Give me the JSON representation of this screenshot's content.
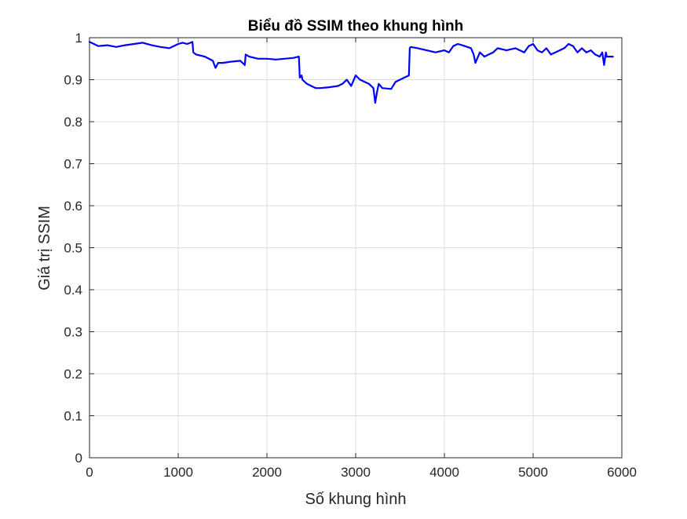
{
  "chart_data": {
    "type": "line",
    "title": "Biểu đồ SSIM theo khung hình",
    "xlabel": "Số khung hình",
    "ylabel": "Giá trị SSIM",
    "xlim": [
      0,
      6000
    ],
    "ylim": [
      0,
      1
    ],
    "x_ticks": [
      0,
      1000,
      2000,
      3000,
      4000,
      5000,
      6000
    ],
    "x_tick_labels": [
      "0",
      "1000",
      "2000",
      "3000",
      "4000",
      "5000",
      "6000"
    ],
    "y_ticks": [
      0,
      0.1,
      0.2,
      0.3,
      0.4,
      0.5,
      0.6,
      0.7,
      0.8,
      0.9,
      1
    ],
    "y_tick_labels": [
      "0",
      "0.1",
      "0.2",
      "0.3",
      "0.4",
      "0.5",
      "0.6",
      "0.7",
      "0.8",
      "0.9",
      "1"
    ],
    "grid": true,
    "colors": {
      "series": "#0000ff",
      "axis": "#262626",
      "grid": "#dcdcdc"
    },
    "series": [
      {
        "x": [
          0,
          50,
          100,
          200,
          300,
          400,
          500,
          600,
          700,
          800,
          900,
          1000,
          1050,
          1100,
          1140,
          1160,
          1170,
          1200,
          1300,
          1390,
          1420,
          1450,
          1500,
          1600,
          1700,
          1750,
          1760,
          1800,
          1900,
          2000,
          2100,
          2200,
          2300,
          2360,
          2370,
          2390,
          2400,
          2450,
          2500,
          2550,
          2600,
          2700,
          2800,
          2850,
          2900,
          2950,
          3000,
          3050,
          3100,
          3150,
          3200,
          3220,
          3240,
          3260,
          3300,
          3400,
          3450,
          3500,
          3550,
          3600,
          3610,
          3620,
          3700,
          3800,
          3900,
          4000,
          4050,
          4100,
          4150,
          4200,
          4300,
          4330,
          4350,
          4400,
          4450,
          4500,
          4550,
          4600,
          4700,
          4800,
          4900,
          4950,
          5000,
          5050,
          5100,
          5150,
          5200,
          5250,
          5300,
          5350,
          5400,
          5450,
          5500,
          5550,
          5600,
          5650,
          5700,
          5750,
          5780,
          5800,
          5820,
          5830,
          5900
        ],
        "y": [
          0.99,
          0.985,
          0.98,
          0.982,
          0.978,
          0.982,
          0.985,
          0.988,
          0.982,
          0.978,
          0.975,
          0.985,
          0.988,
          0.985,
          0.988,
          0.99,
          0.965,
          0.96,
          0.955,
          0.945,
          0.928,
          0.94,
          0.94,
          0.943,
          0.945,
          0.935,
          0.96,
          0.955,
          0.95,
          0.95,
          0.948,
          0.95,
          0.952,
          0.955,
          0.905,
          0.91,
          0.9,
          0.89,
          0.885,
          0.88,
          0.88,
          0.882,
          0.885,
          0.89,
          0.9,
          0.885,
          0.91,
          0.9,
          0.895,
          0.89,
          0.88,
          0.845,
          0.87,
          0.89,
          0.88,
          0.878,
          0.895,
          0.9,
          0.905,
          0.91,
          0.975,
          0.978,
          0.975,
          0.97,
          0.965,
          0.97,
          0.965,
          0.98,
          0.985,
          0.982,
          0.975,
          0.96,
          0.94,
          0.965,
          0.955,
          0.96,
          0.965,
          0.975,
          0.97,
          0.975,
          0.965,
          0.98,
          0.985,
          0.97,
          0.965,
          0.975,
          0.96,
          0.965,
          0.97,
          0.975,
          0.985,
          0.98,
          0.965,
          0.975,
          0.965,
          0.97,
          0.96,
          0.955,
          0.965,
          0.935,
          0.965,
          0.955,
          0.955
        ]
      }
    ]
  }
}
